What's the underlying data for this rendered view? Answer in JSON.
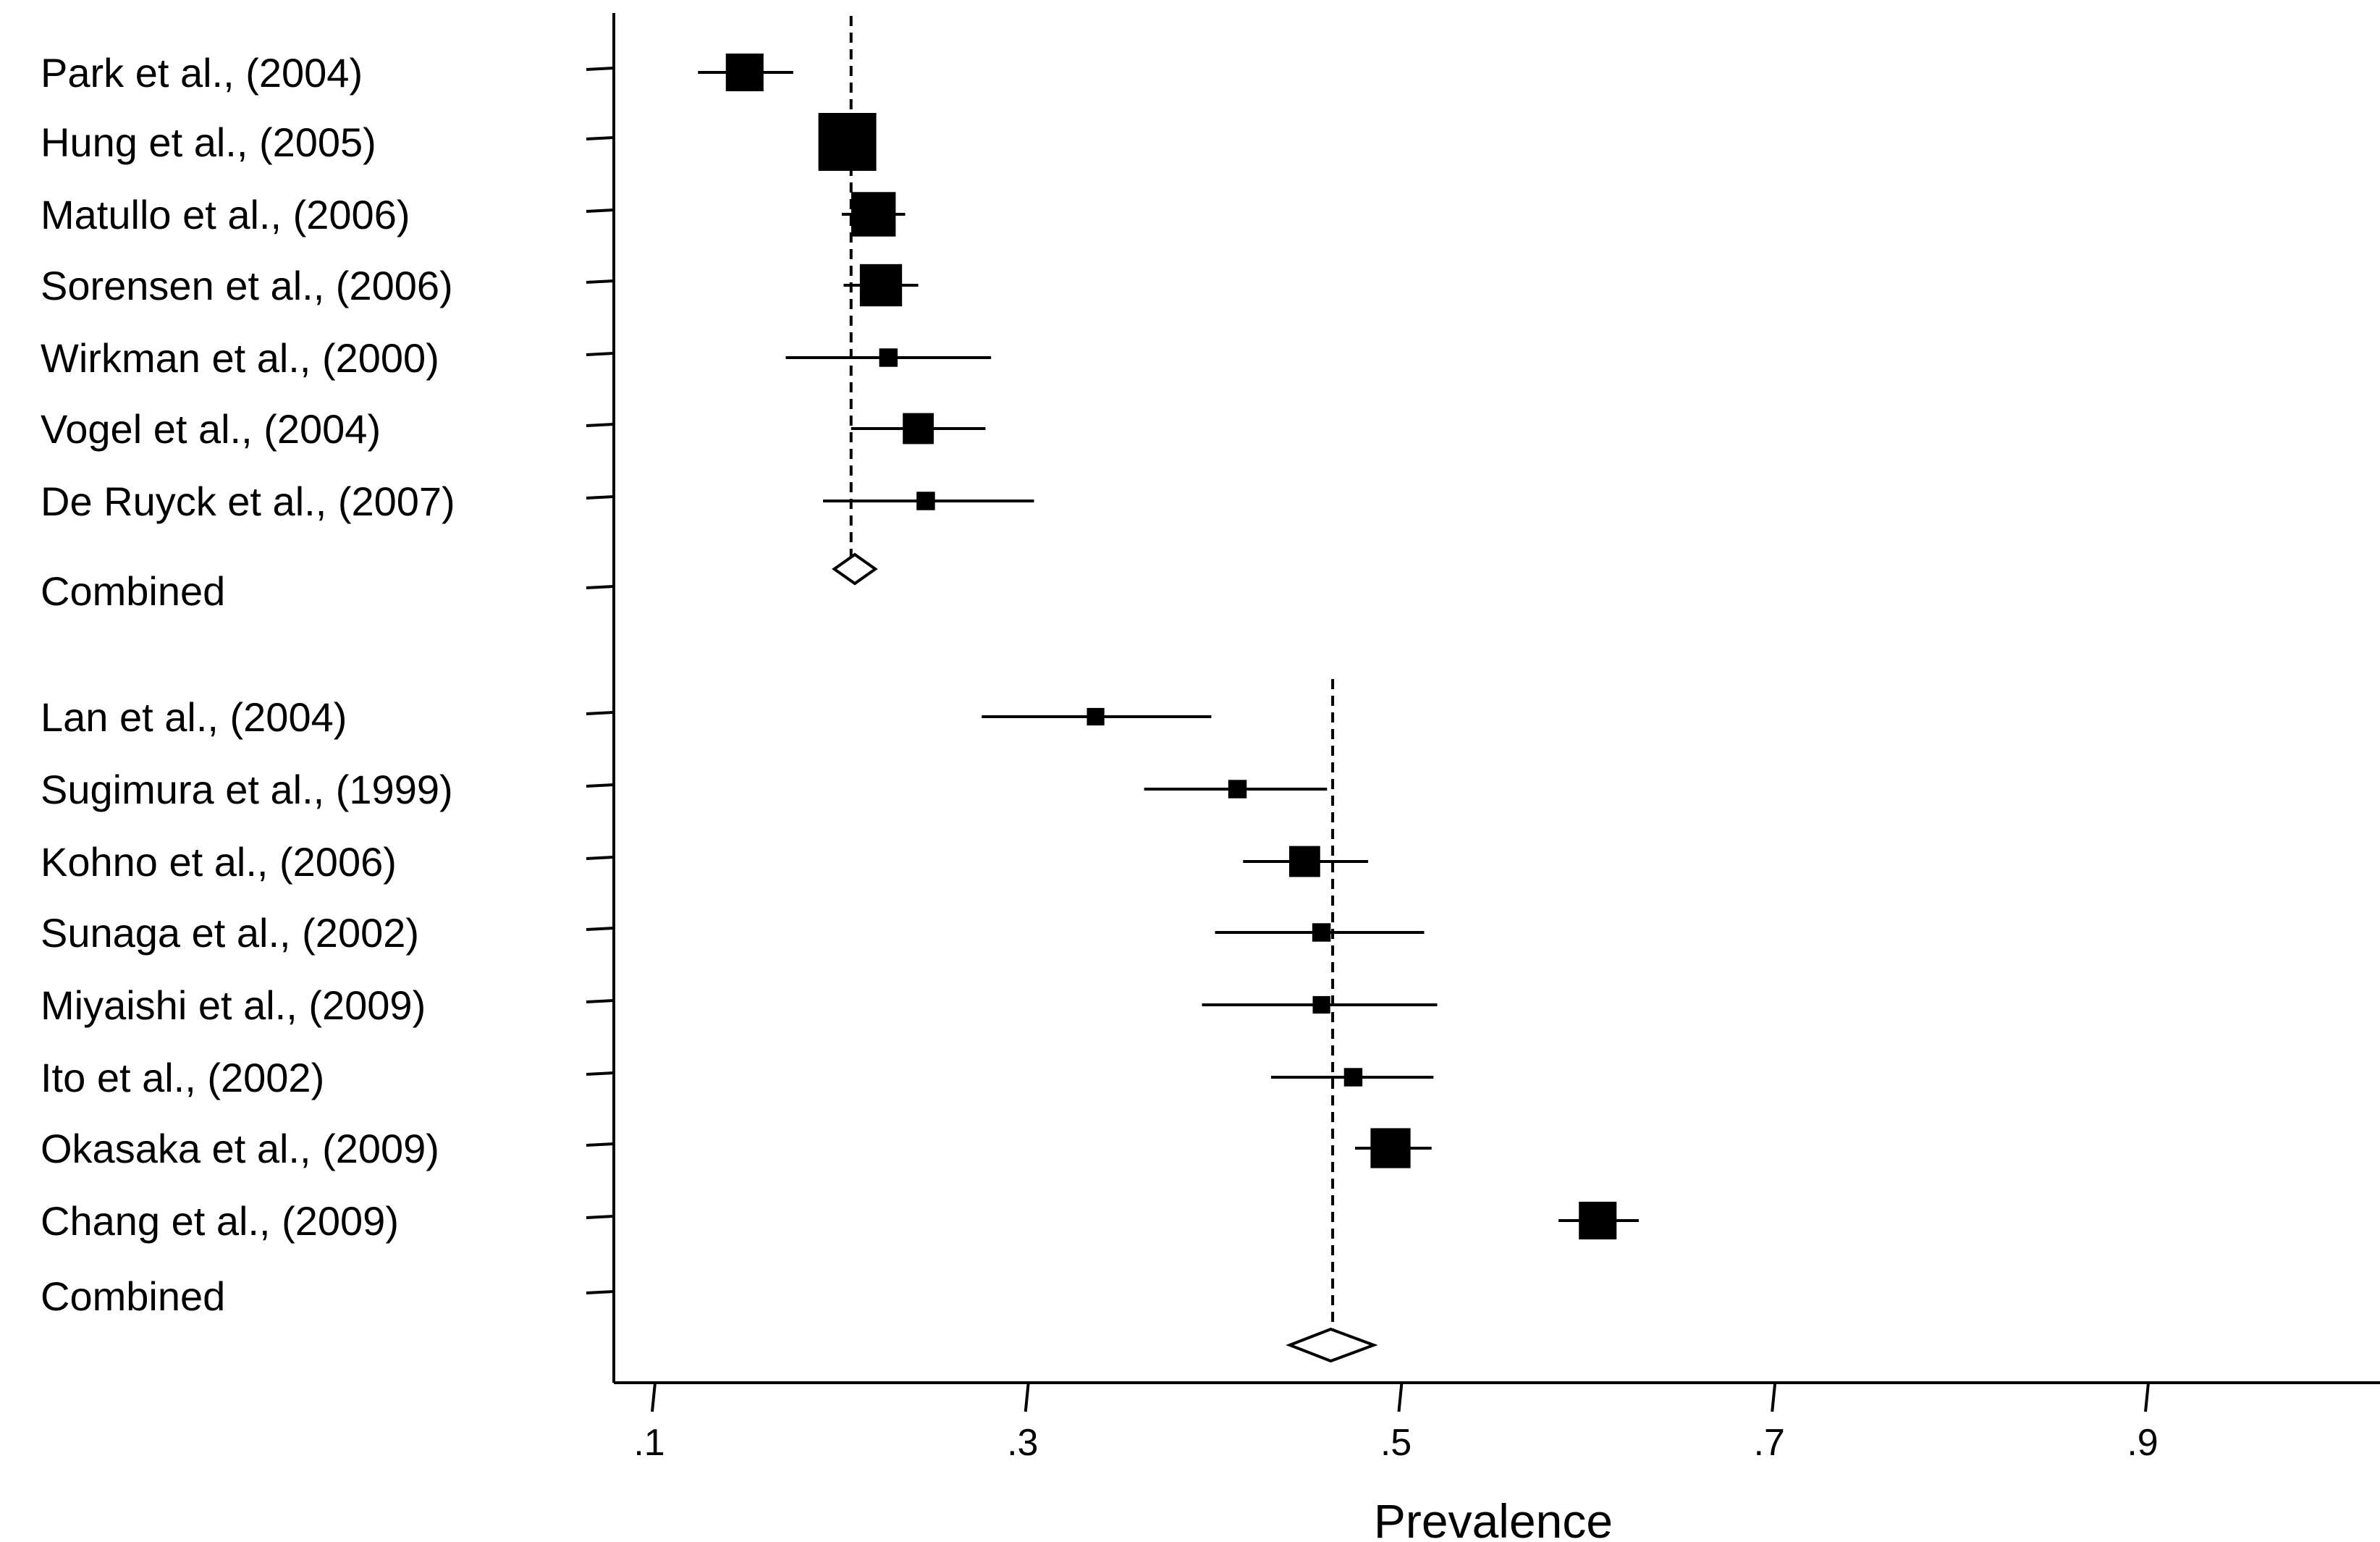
{
  "chart_data": {
    "type": "forest",
    "xlabel": "Prevalence",
    "xlim": [
      0.08,
      1.03
    ],
    "x_ticks": [
      0.1,
      0.3,
      0.5,
      0.7,
      0.9
    ],
    "x_tick_labels": [
      ".1",
      ".3",
      ".5",
      ".7",
      ".9"
    ],
    "groups": [
      {
        "pooled_estimate": 0.205,
        "studies": [
          {
            "label": "Park et al., (2004)",
            "estimate": 0.148,
            "ci": [
              0.123,
              0.174
            ],
            "weight": 0.55
          },
          {
            "label": "Hung et al., (2005)",
            "estimate": 0.203,
            "ci": [
              0.19,
              0.216
            ],
            "weight": 1.0
          },
          {
            "label": "Matullo et al., (2006)",
            "estimate": 0.217,
            "ci": [
              0.2,
              0.234
            ],
            "weight": 0.7
          },
          {
            "label": "Sorensen et al., (2006)",
            "estimate": 0.221,
            "ci": [
              0.201,
              0.241
            ],
            "weight": 0.65
          },
          {
            "label": "Wirkman et al., (2000)",
            "estimate": 0.225,
            "ci": [
              0.17,
              0.28
            ],
            "weight": 0.12
          },
          {
            "label": "Vogel et al., (2004)",
            "estimate": 0.241,
            "ci": [
              0.205,
              0.277
            ],
            "weight": 0.4
          },
          {
            "label": "De Ruyck et al., (2007)",
            "estimate": 0.245,
            "ci": [
              0.19,
              0.303
            ],
            "weight": 0.12
          },
          {
            "label": "Combined",
            "estimate": 0.207,
            "ci": [
              0.196,
              0.218
            ],
            "combined": true
          }
        ]
      },
      {
        "pooled_estimate": 0.463,
        "studies": [
          {
            "label": "Lan et al., (2004)",
            "estimate": 0.336,
            "ci": [
              0.275,
              0.398
            ],
            "weight": 0.1
          },
          {
            "label": "Sugimura et al., (1999)",
            "estimate": 0.412,
            "ci": [
              0.362,
              0.46
            ],
            "weight": 0.12
          },
          {
            "label": "Kohno et al., (2006)",
            "estimate": 0.448,
            "ci": [
              0.415,
              0.482
            ],
            "weight": 0.4
          },
          {
            "label": "Sunaga et al., (2002)",
            "estimate": 0.457,
            "ci": [
              0.4,
              0.512
            ],
            "weight": 0.12
          },
          {
            "label": "Miyaishi et al., (2009)",
            "estimate": 0.457,
            "ci": [
              0.393,
              0.519
            ],
            "weight": 0.1
          },
          {
            "label": "Ito et al., (2002)",
            "estimate": 0.474,
            "ci": [
              0.43,
              0.517
            ],
            "weight": 0.12
          },
          {
            "label": "Okasaka et al., (2009)",
            "estimate": 0.494,
            "ci": [
              0.475,
              0.516
            ],
            "weight": 0.6
          },
          {
            "label": "Chang et al., (2009)",
            "estimate": 0.605,
            "ci": [
              0.584,
              0.627
            ],
            "weight": 0.55
          },
          {
            "label": "Combined",
            "estimate": 0.462,
            "ci": [
              0.44,
              0.485
            ],
            "combined": true
          }
        ]
      }
    ]
  }
}
